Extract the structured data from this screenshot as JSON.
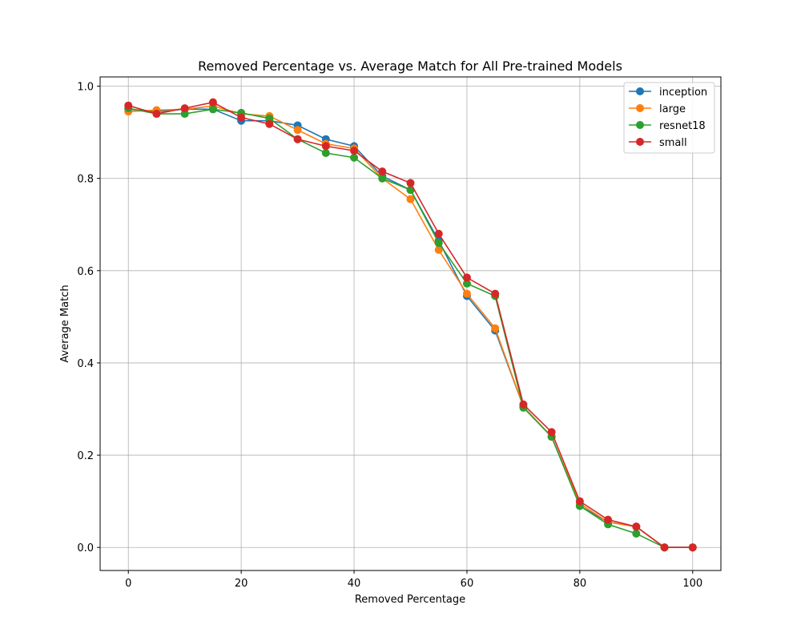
{
  "chart_data": {
    "type": "line",
    "title": "Removed Percentage vs. Average Match for All Pre-trained Models",
    "xlabel": "Removed Percentage",
    "ylabel": "Average Match",
    "xlim": [
      -5,
      105
    ],
    "ylim": [
      -0.05,
      1.02
    ],
    "xticks": [
      0,
      20,
      40,
      60,
      80,
      100
    ],
    "yticks": [
      0.0,
      0.2,
      0.4,
      0.6,
      0.8,
      1.0
    ],
    "grid": true,
    "legend_position": "top-right",
    "x": [
      0,
      5,
      10,
      15,
      20,
      25,
      30,
      35,
      40,
      45,
      50,
      55,
      60,
      65,
      70,
      75,
      80,
      85,
      90,
      95,
      100
    ],
    "series": [
      {
        "name": "inception",
        "color": "#1f77b4",
        "values": [
          0.95,
          0.945,
          0.95,
          0.95,
          0.925,
          0.925,
          0.915,
          0.885,
          0.87,
          0.805,
          0.775,
          0.665,
          0.545,
          0.47,
          0.305,
          0.24,
          0.09,
          0.055,
          0.045,
          0.0,
          0.0
        ]
      },
      {
        "name": "large",
        "color": "#ff7f0e",
        "values": [
          0.945,
          0.948,
          0.95,
          0.957,
          0.94,
          0.935,
          0.905,
          0.875,
          0.865,
          0.8,
          0.755,
          0.645,
          0.55,
          0.475,
          0.305,
          0.24,
          0.095,
          0.055,
          0.045,
          0.0,
          0.0
        ]
      },
      {
        "name": "resnet18",
        "color": "#2ca02c",
        "values": [
          0.952,
          0.94,
          0.94,
          0.95,
          0.942,
          0.93,
          0.885,
          0.855,
          0.845,
          0.8,
          0.775,
          0.66,
          0.572,
          0.545,
          0.303,
          0.24,
          0.09,
          0.05,
          0.03,
          0.0,
          0.0
        ]
      },
      {
        "name": "small",
        "color": "#d62728",
        "values": [
          0.958,
          0.94,
          0.952,
          0.965,
          0.932,
          0.918,
          0.885,
          0.87,
          0.86,
          0.815,
          0.79,
          0.68,
          0.585,
          0.55,
          0.31,
          0.25,
          0.1,
          0.06,
          0.045,
          0.0,
          0.0
        ]
      }
    ]
  }
}
